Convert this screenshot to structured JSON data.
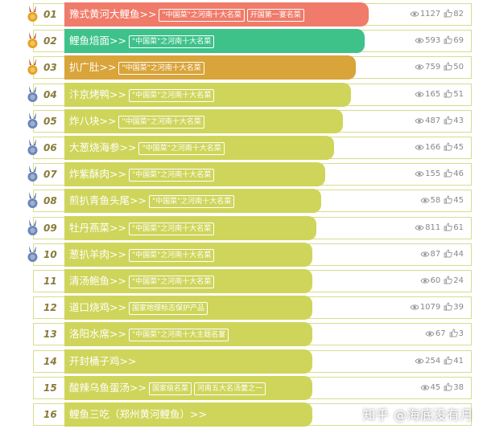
{
  "colors": {
    "rank1": "#f07b6a",
    "rank2": "#3ec28a",
    "rank3": "#d9a43a",
    "rest": "#cfd55a",
    "frame_border": "#d7dc8f"
  },
  "items": [
    {
      "rank": "01",
      "name": "豫式黄河大鲤鱼>>",
      "tags": [
        "\"中国菜\"之河南十大名菜",
        "开国第一宴名菜"
      ],
      "views": "1127",
      "likes": "82",
      "medal": "gold",
      "bar": "rank1",
      "width": 0.7
    },
    {
      "rank": "02",
      "name": "鲤鱼焙面>>",
      "tags": [
        "\"中国菜\"之河南十大名菜"
      ],
      "views": "593",
      "likes": "69",
      "medal": "gold",
      "bar": "rank2",
      "width": 0.69
    },
    {
      "rank": "03",
      "name": "扒广肚>>",
      "tags": [
        "\"中国菜\"之河南十大名菜"
      ],
      "views": "759",
      "likes": "50",
      "medal": "gold",
      "bar": "rank3",
      "width": 0.67
    },
    {
      "rank": "04",
      "name": "汴京烤鸭>>",
      "tags": [
        "\"中国菜\"之河南十大名菜"
      ],
      "views": "165",
      "likes": "51",
      "medal": "silver",
      "bar": "rest",
      "width": 0.66
    },
    {
      "rank": "05",
      "name": "炸八块>>",
      "tags": [
        "\"中国菜\"之河南十大名菜"
      ],
      "views": "487",
      "likes": "43",
      "medal": "silver",
      "bar": "rest",
      "width": 0.64
    },
    {
      "rank": "06",
      "name": "大葱烧海参>>",
      "tags": [
        "\"中国菜\"之河南十大名菜"
      ],
      "views": "166",
      "likes": "45",
      "medal": "silver",
      "bar": "rest",
      "width": 0.62
    },
    {
      "rank": "07",
      "name": "炸紫酥肉>>",
      "tags": [
        "\"中国菜\"之河南十大名菜"
      ],
      "views": "155",
      "likes": "46",
      "medal": "silver",
      "bar": "rest",
      "width": 0.6
    },
    {
      "rank": "08",
      "name": "煎扒青鱼头尾>>",
      "tags": [
        "\"中国菜\"之河南十大名菜"
      ],
      "views": "58",
      "likes": "45",
      "medal": "silver",
      "bar": "rest",
      "width": 0.59
    },
    {
      "rank": "09",
      "name": "牡丹燕菜>>",
      "tags": [
        "\"中国菜\"之河南十大名菜"
      ],
      "views": "811",
      "likes": "61",
      "medal": "silver",
      "bar": "rest",
      "width": 0.58
    },
    {
      "rank": "10",
      "name": "葱扒羊肉>>",
      "tags": [
        "\"中国菜\"之河南十大名菜"
      ],
      "views": "87",
      "likes": "44",
      "medal": "silver",
      "bar": "rest",
      "width": 0.57
    },
    {
      "rank": "11",
      "name": "清汤鲍鱼>>",
      "tags": [
        "\"中国菜\"之河南十大名菜"
      ],
      "views": "60",
      "likes": "24",
      "medal": "none",
      "bar": "rest",
      "width": 0.57
    },
    {
      "rank": "12",
      "name": "道口烧鸡>>",
      "tags": [
        "国家地理标志保护产品"
      ],
      "views": "1079",
      "likes": "39",
      "medal": "none",
      "bar": "rest",
      "width": 0.57
    },
    {
      "rank": "13",
      "name": "洛阳水席>>",
      "tags": [
        "\"中国菜\"之河南十大主题名宴"
      ],
      "views": "67",
      "likes": "3",
      "medal": "none",
      "bar": "rest",
      "width": 0.57
    },
    {
      "rank": "14",
      "name": "开封桶子鸡>>",
      "tags": [],
      "views": "254",
      "likes": "41",
      "medal": "none",
      "bar": "rest",
      "width": 0.57
    },
    {
      "rank": "15",
      "name": "酸辣乌鱼蛋汤>>",
      "tags": [
        "国家级名菜",
        "河南五大名汤羹之一"
      ],
      "views": "45",
      "likes": "38",
      "medal": "none",
      "bar": "rest",
      "width": 0.57
    },
    {
      "rank": "16",
      "name": "鲤鱼三吃（郑州黄河鲤鱼）>>",
      "tags": [],
      "views": "",
      "likes": "",
      "medal": "none",
      "bar": "rest",
      "width": 0.57
    }
  ],
  "watermark": "知乎 @海底没有月"
}
